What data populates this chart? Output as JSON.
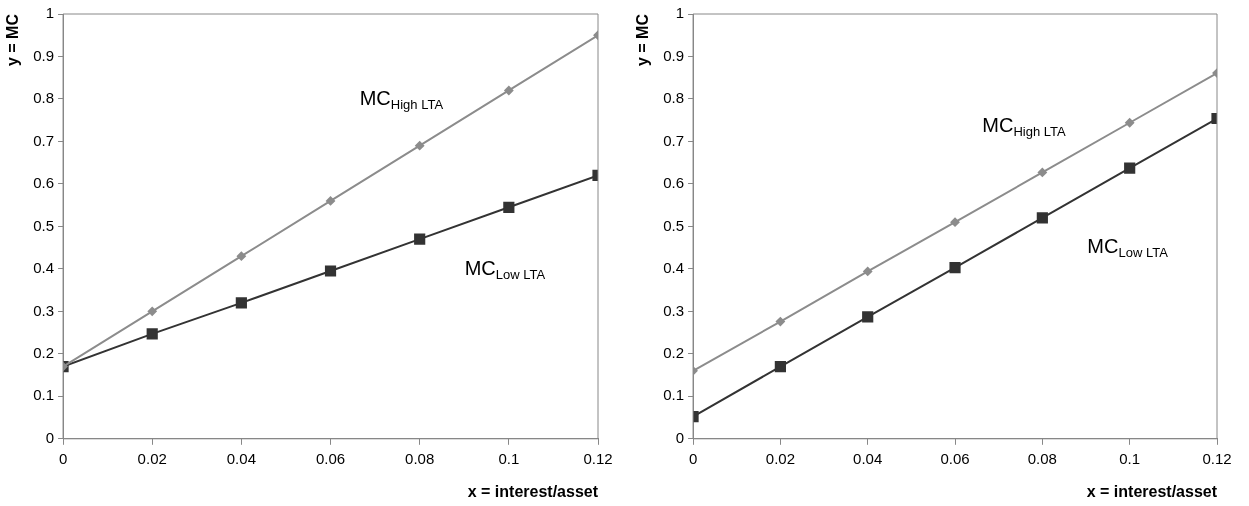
{
  "chart_data": [
    {
      "type": "line",
      "xlabel": "x = interest/asset",
      "ylabel": "y = MC",
      "x": [
        0,
        0.02,
        0.04,
        0.06,
        0.08,
        0.1,
        0.12
      ],
      "series": [
        {
          "name": "MC$_{High LTA}$",
          "color": "#8c8c8c",
          "marker": "diamond",
          "values": [
            0.17,
            0.3,
            0.43,
            0.56,
            0.69,
            0.82,
            0.95
          ]
        },
        {
          "name": "MC$_{Low LTA}$",
          "color": "#333333",
          "marker": "square",
          "values": [
            0.17,
            0.247,
            0.32,
            0.395,
            0.47,
            0.545,
            0.62
          ]
        }
      ],
      "xlim": [
        0,
        0.12
      ],
      "xticks": [
        0,
        0.02,
        0.04,
        0.06,
        0.08,
        0.1,
        0.12
      ],
      "ylim": [
        0,
        1
      ],
      "yticks": [
        0,
        0.1,
        0.2,
        0.3,
        0.4,
        0.5,
        0.6,
        0.7,
        0.8,
        0.9,
        1
      ],
      "grid": false,
      "legend": false
    },
    {
      "type": "line",
      "xlabel": "x = interest/asset",
      "ylabel": "y = MC",
      "x": [
        0,
        0.02,
        0.04,
        0.06,
        0.08,
        0.1,
        0.12
      ],
      "series": [
        {
          "name": "MC$_{High LTA}$",
          "color": "#8c8c8c",
          "marker": "diamond",
          "values": [
            0.16,
            0.276,
            0.394,
            0.51,
            0.627,
            0.744,
            0.861
          ]
        },
        {
          "name": "MC$_{Low LTA}$",
          "color": "#333333",
          "marker": "square",
          "values": [
            0.052,
            0.17,
            0.287,
            0.403,
            0.52,
            0.637,
            0.754
          ]
        }
      ],
      "xlim": [
        0,
        0.12
      ],
      "xticks": [
        0,
        0.02,
        0.04,
        0.06,
        0.08,
        0.1,
        0.12
      ],
      "ylim": [
        0,
        1
      ],
      "yticks": [
        0,
        0.1,
        0.2,
        0.3,
        0.4,
        0.5,
        0.6,
        0.7,
        0.8,
        0.9,
        1
      ],
      "grid": false,
      "legend": false
    }
  ]
}
